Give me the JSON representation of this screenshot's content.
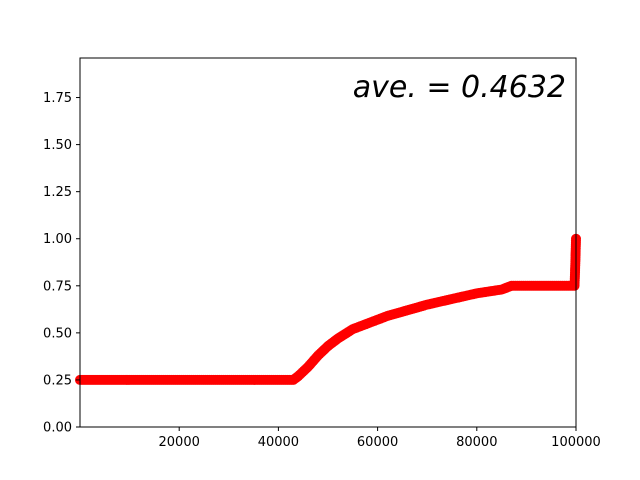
{
  "chart_data": {
    "type": "scatter",
    "xlim": [
      0,
      100000
    ],
    "ylim": [
      0,
      1.96
    ],
    "x_ticks": [
      20000,
      40000,
      60000,
      80000,
      100000
    ],
    "x_tick_labels": [
      "20000",
      "40000",
      "60000",
      "80000",
      "100000"
    ],
    "y_ticks": [
      0.0,
      0.25,
      0.5,
      0.75,
      1.0,
      1.25,
      1.5,
      1.75
    ],
    "y_tick_labels": [
      "0.00",
      "0.25",
      "0.50",
      "0.75",
      "1.00",
      "1.25",
      "1.50",
      "1.75"
    ],
    "grid": false,
    "annotation": "ave. = 0.4632",
    "series": [
      {
        "color": "#ff0000",
        "marker": "circle",
        "points": [
          [
            0,
            0.25
          ],
          [
            43000,
            0.25
          ],
          [
            44000,
            0.27
          ],
          [
            46000,
            0.32
          ],
          [
            48000,
            0.38
          ],
          [
            50000,
            0.43
          ],
          [
            52000,
            0.47
          ],
          [
            55000,
            0.52
          ],
          [
            58000,
            0.55
          ],
          [
            62000,
            0.59
          ],
          [
            66000,
            0.62
          ],
          [
            70000,
            0.65
          ],
          [
            75000,
            0.68
          ],
          [
            80000,
            0.71
          ],
          [
            85000,
            0.73
          ],
          [
            87000,
            0.75
          ],
          [
            99700,
            0.75
          ],
          [
            99800,
            0.82
          ],
          [
            99900,
            0.9
          ],
          [
            100000,
            1.0
          ]
        ]
      }
    ]
  }
}
